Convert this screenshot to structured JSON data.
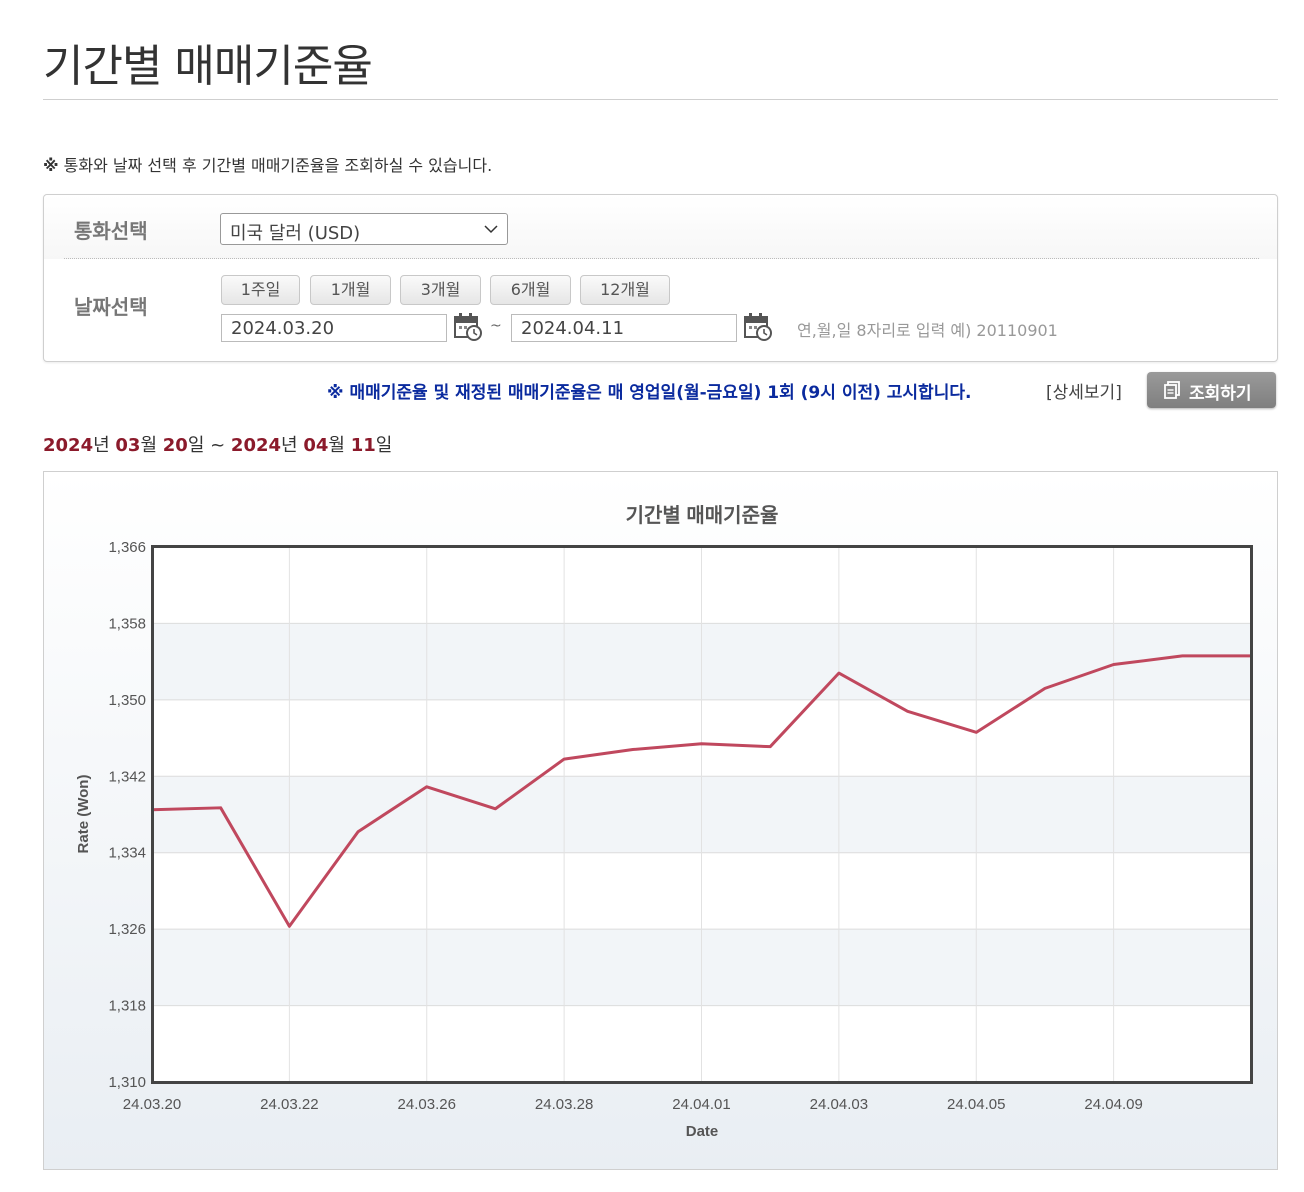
{
  "page": {
    "title": "기간별 매매기준율"
  },
  "notice": {
    "mark": "※",
    "text": "통화와 날짜 선택 후 기간별 매매기준율을 조회하실 수 있습니다."
  },
  "filters": {
    "currency_label": "통화선택",
    "currency_value": "미국 달러 (USD)",
    "date_label": "날짜선택",
    "period_buttons": [
      "1주일",
      "1개월",
      "3개월",
      "6개월",
      "12개월"
    ],
    "start_date": "2024.03.20",
    "tilde": "~",
    "end_date": "2024.04.11",
    "hint": "연,월,일 8자리로 입력 예) 20110901"
  },
  "announce": "※ 매매기준율 및 재정된 매매기준율은 매 영업일(월-금요일) 1회 (9시 이전) 고시합니다.",
  "detail_link": "[상세보기]",
  "search_button": "조회하기",
  "period_display": {
    "y1": "2024",
    "u_year1": "년 ",
    "m1": "03",
    "u_month1": "월 ",
    "d1": "20",
    "u_day1": "일 ~ ",
    "y2": "2024",
    "u_year2": "년 ",
    "m2": "04",
    "u_month2": "월 ",
    "d2": "11",
    "u_day2": "일"
  },
  "colors": {
    "line": "#c0485e",
    "accent_text": "#8b1a2b",
    "announce_text": "#0a2a9e"
  },
  "chart_data": {
    "type": "line",
    "title": "기간별 매매기준율",
    "xlabel": "Date",
    "ylabel": "Rate (Won)",
    "ylim": [
      1310,
      1366
    ],
    "yticks": [
      1310,
      1318,
      1326,
      1334,
      1342,
      1350,
      1358,
      1366
    ],
    "ytick_labels": [
      "1,310",
      "1,318",
      "1,326",
      "1,334",
      "1,342",
      "1,350",
      "1,358",
      "1,366"
    ],
    "xtick_labels": [
      "24.03.20",
      "24.03.22",
      "24.03.26",
      "24.03.28",
      "24.04.01",
      "24.04.03",
      "24.04.05",
      "24.04.09"
    ],
    "x": [
      "24.03.20",
      "24.03.21",
      "24.03.22",
      "24.03.25",
      "24.03.26",
      "24.03.27",
      "24.03.28",
      "24.03.29",
      "24.04.01",
      "24.04.02",
      "24.04.03",
      "24.04.04",
      "24.04.05",
      "24.04.08",
      "24.04.09",
      "24.04.10",
      "24.04.11"
    ],
    "series": [
      {
        "values": [
          1338.5,
          1338.7,
          1326.3,
          1336.2,
          1340.9,
          1338.6,
          1343.8,
          1344.8,
          1345.4,
          1345.1,
          1352.8,
          1348.8,
          1346.6,
          1351.2,
          1353.7,
          1354.6,
          1354.6
        ]
      }
    ],
    "grid": true,
    "legend": "none"
  }
}
